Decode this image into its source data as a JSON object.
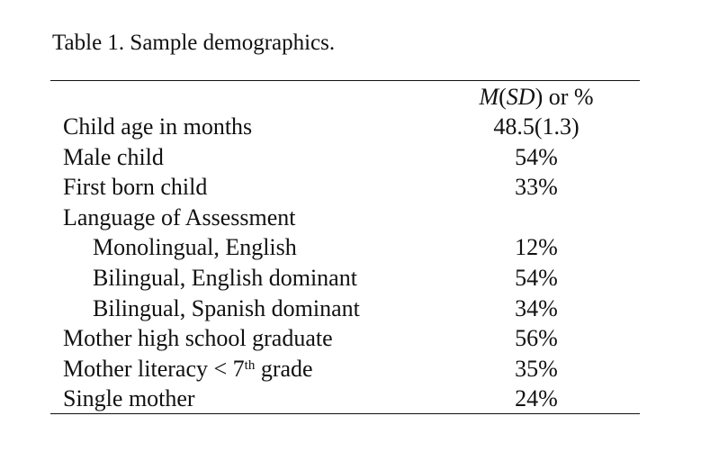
{
  "caption": "Table 1. Sample demographics.",
  "header": {
    "stat_m": "M",
    "stat_open": "(",
    "stat_sd": "SD",
    "stat_close": ") or %"
  },
  "rows": [
    {
      "label": "Child age in months",
      "value": "48.5(1.3)",
      "indent": false
    },
    {
      "label": "Male child",
      "value": "54%",
      "indent": false
    },
    {
      "label": "First born child",
      "value": "33%",
      "indent": false
    },
    {
      "label": "Language of Assessment",
      "value": "",
      "indent": false
    },
    {
      "label": "Monolingual, English",
      "value": "12%",
      "indent": true
    },
    {
      "label": "Bilingual, English dominant",
      "value": "54%",
      "indent": true
    },
    {
      "label": "Bilingual, Spanish dominant",
      "value": "34%",
      "indent": true
    },
    {
      "label": "Mother high school graduate",
      "value": "56%",
      "indent": false
    },
    {
      "label_pre": "Mother literacy < 7",
      "label_sup": "th",
      "label_post": " grade",
      "value": "35%",
      "indent": false
    },
    {
      "label": "Single mother",
      "value": "24%",
      "indent": false
    }
  ]
}
